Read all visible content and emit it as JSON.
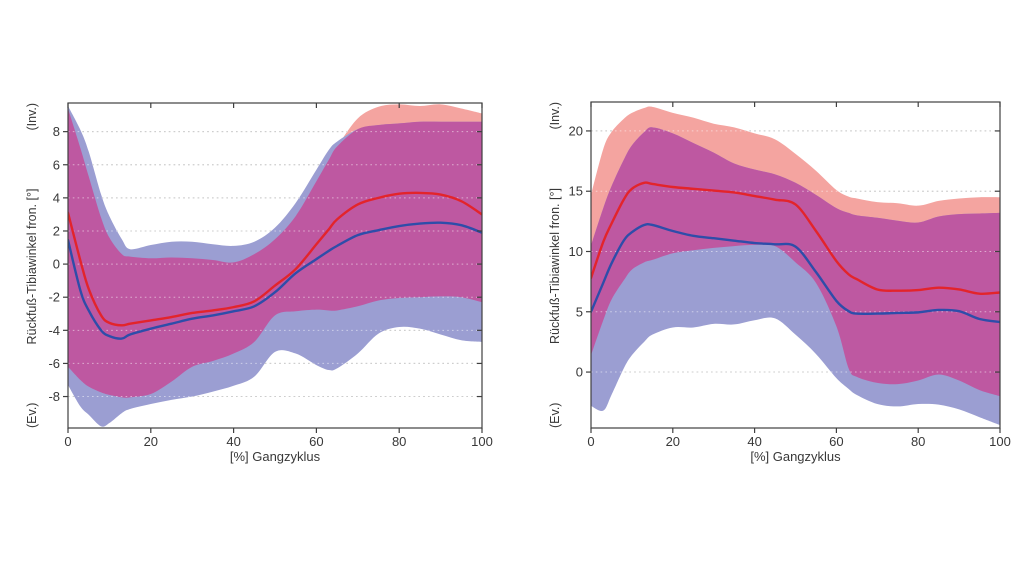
{
  "figure": {
    "background": "#ffffff",
    "description": "Two MATLAB-style gait-analysis plots of rearfoot-tibia frontal angle over gait cycle, each with red and blue mean curves and overlapping red/blue standard-deviation bands"
  },
  "colors": {
    "red_line": "#e3242b",
    "blue_line": "#2e4da9",
    "red_band": "#f4a4a0",
    "blue_band": "#9b9ed2",
    "overlap_band": "#be58a1",
    "grid": "#9a9a9a",
    "axis": "#3f3f3f",
    "text": "#383838"
  },
  "chart_data": [
    {
      "type": "line",
      "title": "",
      "xlabel": "[%] Gangzyklus",
      "ylabel": "(Ev.)  Rückfuß-Tibiawinkel fron. [°]  (Inv.)",
      "ylabel_parts": [
        "(Ev.)",
        "Rückfuß-Tibiawinkel fron. [°]",
        "(Inv.)"
      ],
      "xlim": [
        0,
        100
      ],
      "ylim": [
        -9.9,
        9.73
      ],
      "xticks": [
        0,
        20,
        40,
        60,
        80,
        100
      ],
      "yticks": [
        8,
        6,
        4,
        2,
        0,
        -2,
        -4,
        -6,
        -8
      ],
      "grid": "horizontal-dotted",
      "legend": "none",
      "x": [
        0,
        3,
        5,
        8,
        10,
        13,
        15,
        20,
        25,
        30,
        35,
        40,
        45,
        50,
        55,
        60,
        63,
        65,
        70,
        75,
        80,
        85,
        90,
        95,
        100
      ],
      "series": [
        {
          "name": "red-mean",
          "color_key": "red_line",
          "values": [
            3.1,
            0.2,
            -1.5,
            -3.1,
            -3.55,
            -3.7,
            -3.6,
            -3.4,
            -3.2,
            -2.95,
            -2.8,
            -2.6,
            -2.25,
            -1.3,
            -0.3,
            1.2,
            2.1,
            2.7,
            3.6,
            4.0,
            4.25,
            4.3,
            4.2,
            3.8,
            3.0
          ]
        },
        {
          "name": "blue-mean",
          "color_key": "blue_line",
          "values": [
            1.45,
            -1.6,
            -2.8,
            -4.0,
            -4.35,
            -4.5,
            -4.25,
            -3.9,
            -3.6,
            -3.3,
            -3.1,
            -2.85,
            -2.55,
            -1.7,
            -0.55,
            0.3,
            0.8,
            1.1,
            1.75,
            2.05,
            2.3,
            2.45,
            2.5,
            2.35,
            1.9
          ]
        }
      ],
      "bands": [
        {
          "name": "red-sd-band",
          "color_key": "red_band",
          "upper": [
            9.4,
            7.0,
            5.3,
            2.8,
            1.6,
            0.6,
            0.45,
            0.35,
            0.4,
            0.35,
            0.25,
            0.1,
            0.6,
            1.5,
            2.9,
            5.0,
            6.3,
            7.1,
            8.8,
            9.5,
            9.65,
            9.55,
            9.65,
            9.4,
            9.1
          ],
          "lower": [
            -6.2,
            -7.0,
            -7.4,
            -7.75,
            -7.9,
            -8.05,
            -8.05,
            -7.85,
            -7.1,
            -6.2,
            -5.85,
            -5.4,
            -4.7,
            -3.1,
            -2.85,
            -2.75,
            -2.8,
            -2.8,
            -2.55,
            -2.2,
            -2.05,
            -2.0,
            -1.95,
            -2.0,
            -2.3
          ]
        },
        {
          "name": "blue-sd-band",
          "color_key": "blue_band",
          "upper": [
            9.55,
            8.1,
            6.8,
            4.2,
            2.9,
            1.5,
            0.9,
            1.15,
            1.35,
            1.35,
            1.2,
            1.1,
            1.35,
            2.2,
            3.7,
            5.7,
            6.9,
            7.4,
            8.15,
            8.4,
            8.5,
            8.6,
            8.6,
            8.6,
            8.6
          ],
          "lower": [
            -7.3,
            -8.6,
            -9.1,
            -9.8,
            -9.6,
            -9.0,
            -8.75,
            -8.45,
            -8.2,
            -8.0,
            -7.7,
            -7.35,
            -6.8,
            -5.3,
            -5.4,
            -6.1,
            -6.4,
            -6.3,
            -5.4,
            -4.2,
            -3.8,
            -3.9,
            -4.25,
            -4.6,
            -4.7
          ]
        },
        {
          "name": "overlap",
          "color_key": "overlap_band",
          "derived": "intersection"
        }
      ]
    },
    {
      "type": "line",
      "title": "",
      "xlabel": "[%] Gangzyklus",
      "ylabel": "(Ev.)  Rückfuß-Tibiawinkel fron. [°]  (Inv.)",
      "ylabel_parts": [
        "(Ev.)",
        "Rückfuß-Tibiawinkel fron. [°]",
        "(Inv.)"
      ],
      "xlim": [
        0,
        100
      ],
      "ylim": [
        -4.64,
        22.4
      ],
      "xticks": [
        0,
        20,
        40,
        60,
        80,
        100
      ],
      "yticks": [
        20,
        15,
        10,
        5,
        0
      ],
      "grid": "horizontal-dotted",
      "legend": "none",
      "x": [
        0,
        3,
        5,
        8,
        10,
        13,
        15,
        20,
        25,
        30,
        35,
        40,
        45,
        50,
        55,
        60,
        63,
        65,
        70,
        75,
        80,
        85,
        90,
        95,
        100
      ],
      "series": [
        {
          "name": "red-mean",
          "color_key": "red_line",
          "values": [
            7.8,
            10.8,
            12.3,
            14.3,
            15.2,
            15.7,
            15.6,
            15.35,
            15.2,
            15.05,
            14.9,
            14.6,
            14.3,
            13.9,
            11.7,
            9.2,
            8.1,
            7.7,
            6.85,
            6.75,
            6.8,
            7.0,
            6.85,
            6.5,
            6.6
          ]
        },
        {
          "name": "blue-mean",
          "color_key": "blue_line",
          "values": [
            5.0,
            7.4,
            9.0,
            10.9,
            11.6,
            12.2,
            12.2,
            11.7,
            11.3,
            11.1,
            10.9,
            10.7,
            10.6,
            10.4,
            8.3,
            5.9,
            5.05,
            4.85,
            4.85,
            4.9,
            4.95,
            5.15,
            5.05,
            4.4,
            4.15
          ]
        }
      ],
      "bands": [
        {
          "name": "red-sd-band",
          "color_key": "red_band",
          "upper": [
            14.7,
            18.5,
            19.9,
            21.0,
            21.5,
            21.9,
            22.0,
            21.5,
            21.1,
            20.6,
            20.3,
            19.8,
            19.3,
            18.1,
            16.7,
            15.1,
            14.55,
            14.4,
            14.1,
            14.0,
            13.8,
            14.2,
            14.4,
            14.5,
            14.5
          ],
          "lower": [
            1.4,
            4.3,
            6.0,
            7.6,
            8.5,
            9.1,
            9.3,
            9.85,
            10.1,
            10.3,
            10.45,
            10.55,
            10.45,
            9.1,
            7.4,
            3.8,
            0.3,
            -0.4,
            -0.9,
            -1.0,
            -0.7,
            -0.2,
            -0.7,
            -1.5,
            -2.0
          ]
        },
        {
          "name": "blue-sd-band",
          "color_key": "blue_band",
          "upper": [
            10.5,
            13.6,
            15.4,
            17.6,
            18.8,
            19.9,
            20.3,
            19.8,
            19.0,
            18.2,
            17.3,
            16.8,
            16.4,
            15.7,
            14.7,
            13.6,
            13.2,
            13.0,
            12.8,
            12.55,
            12.4,
            12.9,
            13.1,
            13.15,
            13.2
          ],
          "lower": [
            -2.8,
            -3.2,
            -1.9,
            0.3,
            1.4,
            2.5,
            3.1,
            3.7,
            3.7,
            4.0,
            3.95,
            4.3,
            4.45,
            3.1,
            1.5,
            -0.5,
            -1.4,
            -1.9,
            -2.65,
            -2.85,
            -2.65,
            -2.7,
            -3.1,
            -3.75,
            -4.4
          ]
        },
        {
          "name": "overlap",
          "color_key": "overlap_band",
          "derived": "intersection"
        }
      ]
    }
  ]
}
